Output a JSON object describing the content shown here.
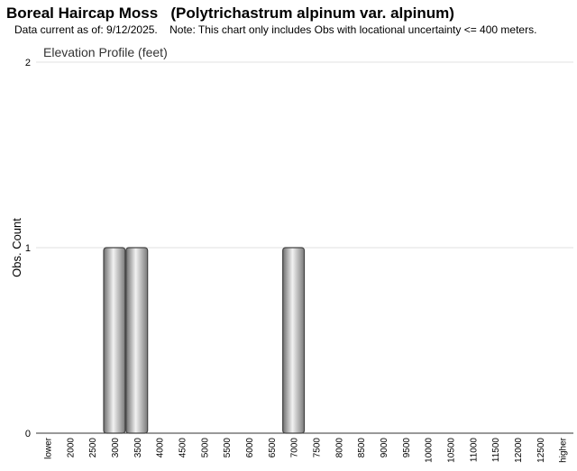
{
  "chart_data": {
    "type": "bar",
    "title": "Boreal Haircap Moss   (Polytrichastrum alpinum var. alpinum)",
    "subtitle": "Data current as of: 9/12/2025.    Note: This chart only includes Obs with locational uncertainty <= 400 meters.",
    "chart_title": "Elevation Profile (feet)",
    "y_label": "Obs. Count",
    "categories": [
      "lower",
      "2000",
      "2500",
      "3000",
      "3500",
      "4000",
      "4500",
      "5000",
      "5500",
      "6000",
      "6500",
      "7000",
      "7500",
      "8000",
      "8500",
      "9000",
      "9500",
      "10000",
      "10500",
      "11000",
      "11500",
      "12000",
      "12500",
      "higher"
    ],
    "values": [
      0,
      0,
      0,
      1,
      1,
      0,
      0,
      0,
      0,
      0,
      0,
      1,
      0,
      0,
      0,
      0,
      0,
      0,
      0,
      0,
      0,
      0,
      0,
      0
    ],
    "color": "#9a9a9a",
    "ylim": [
      0,
      2
    ],
    "yticks": [
      0,
      1,
      2
    ],
    "grid": true
  }
}
